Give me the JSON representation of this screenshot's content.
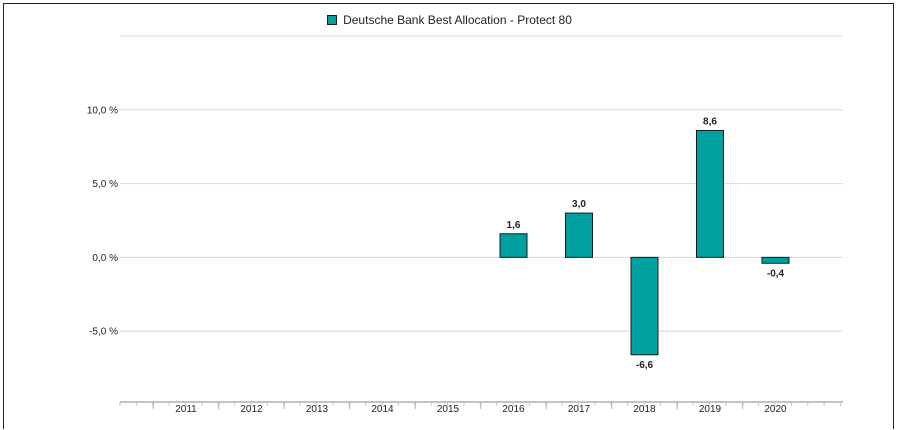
{
  "chart_data": {
    "type": "bar",
    "legend": "Deutsche Bank Best Allocation - Protect 80",
    "categories": [
      "2011",
      "2012",
      "2013",
      "2014",
      "2015",
      "2016",
      "2017",
      "2018",
      "2019",
      "2020"
    ],
    "series": [
      {
        "name": "Deutsche Bank Best Allocation - Protect 80",
        "values": [
          null,
          null,
          null,
          null,
          null,
          1.6,
          3.0,
          -6.6,
          8.6,
          -0.4
        ],
        "labels": [
          "",
          "",
          "",
          "",
          "",
          "1,6",
          "3,0",
          "-6,6",
          "8,6",
          "-0,4"
        ],
        "color": "#00a0a0"
      }
    ],
    "yticks": [
      10,
      5,
      0,
      -5
    ],
    "ytick_labels": [
      "10,0 %",
      "5,0 %",
      "0,0 %",
      "-5,0 %"
    ],
    "ylim": [
      -9.8,
      15
    ],
    "grid": true,
    "legend_position": "top-center",
    "xlabel": "",
    "ylabel": ""
  }
}
